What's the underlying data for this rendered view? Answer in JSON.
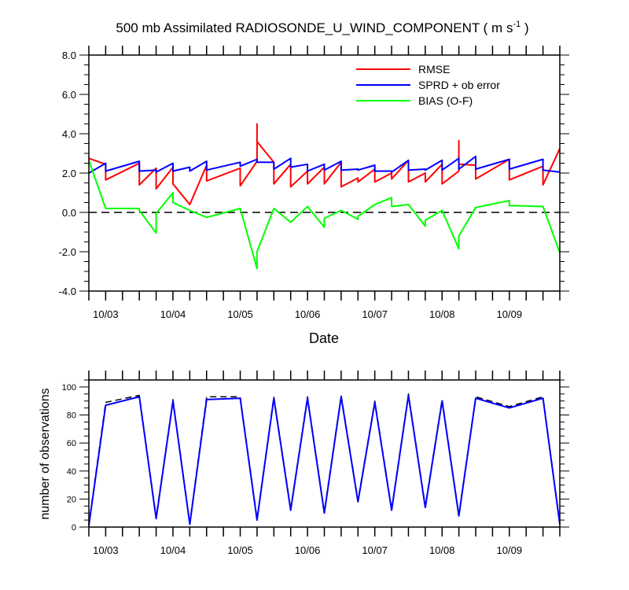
{
  "title": {
    "main": "500 mb Assimilated RADIOSONDE_U_WIND_COMPONENT ( m s",
    "sup": "-1",
    "close": " )"
  },
  "colors": {
    "rmse": "#ff0000",
    "sprd": "#0000ff",
    "bias": "#00ff00",
    "obs_used": "#0000ff",
    "obs_possible": "#000000",
    "zero_line": "#000000"
  },
  "chart_data": [
    {
      "type": "line",
      "xlabel": "Date",
      "ylabel": "",
      "xlim": [
        0,
        28
      ],
      "ylim": [
        -4,
        8
      ],
      "yticks": [
        "8.0",
        "6.0",
        "4.0",
        "2.0",
        "0.0",
        "-2.0",
        "-4.0"
      ],
      "xticks": [
        {
          "x": 1,
          "label": "10/03"
        },
        {
          "x": 5,
          "label": "10/04"
        },
        {
          "x": 9,
          "label": "10/05"
        },
        {
          "x": 13,
          "label": "10/06"
        },
        {
          "x": 17,
          "label": "10/07"
        },
        {
          "x": 21,
          "label": "10/08"
        },
        {
          "x": 25,
          "label": "10/09"
        }
      ],
      "legend_position": "top-right",
      "zero_line": "dashed",
      "series": [
        {
          "key": "rmse",
          "name": "RMSE",
          "points": [
            [
              0,
              2.75
            ],
            [
              1,
              2.45
            ],
            [
              1,
              1.65
            ],
            [
              3,
              2.5
            ],
            [
              3,
              1.4
            ],
            [
              4,
              2.25
            ],
            [
              4,
              1.2
            ],
            [
              5,
              2.3
            ],
            [
              5,
              1.45
            ],
            [
              6,
              0.4
            ],
            [
              7,
              2.4
            ],
            [
              7,
              1.6
            ],
            [
              9,
              2.25
            ],
            [
              9,
              1.35
            ],
            [
              10,
              2.6
            ],
            [
              10,
              4.5
            ],
            [
              10,
              3.6
            ],
            [
              11,
              2.55
            ],
            [
              11,
              1.45
            ],
            [
              12,
              2.45
            ],
            [
              12,
              1.3
            ],
            [
              13,
              2.1
            ],
            [
              13,
              1.45
            ],
            [
              14,
              2.3
            ],
            [
              14,
              1.45
            ],
            [
              15,
              2.55
            ],
            [
              15,
              1.3
            ],
            [
              16,
              1.75
            ],
            [
              16,
              1.55
            ],
            [
              17,
              2.2
            ],
            [
              17,
              1.55
            ],
            [
              18,
              2.0
            ],
            [
              18,
              1.7
            ],
            [
              19,
              2.65
            ],
            [
              19,
              1.55
            ],
            [
              20,
              2.0
            ],
            [
              20,
              1.55
            ],
            [
              21,
              2.45
            ],
            [
              21,
              1.45
            ],
            [
              22,
              2.1
            ],
            [
              22,
              3.65
            ],
            [
              22,
              2.45
            ],
            [
              23,
              2.4
            ],
            [
              23,
              1.7
            ],
            [
              25,
              2.7
            ],
            [
              25,
              1.65
            ],
            [
              27,
              2.35
            ],
            [
              27,
              1.4
            ],
            [
              28,
              3.25
            ]
          ]
        },
        {
          "key": "sprd",
          "name": "SPRD + ob error",
          "points": [
            [
              0,
              2.0
            ],
            [
              1,
              2.5
            ],
            [
              1,
              2.1
            ],
            [
              3,
              2.6
            ],
            [
              3,
              2.1
            ],
            [
              4,
              2.15
            ],
            [
              4,
              2.05
            ],
            [
              5,
              2.5
            ],
            [
              5,
              2.1
            ],
            [
              6,
              2.3
            ],
            [
              6,
              2.1
            ],
            [
              7,
              2.6
            ],
            [
              7,
              2.15
            ],
            [
              9,
              2.55
            ],
            [
              9,
              2.35
            ],
            [
              10,
              2.7
            ],
            [
              10,
              2.55
            ],
            [
              11,
              2.55
            ],
            [
              11,
              2.2
            ],
            [
              12,
              2.75
            ],
            [
              12,
              2.3
            ],
            [
              13,
              2.45
            ],
            [
              13,
              2.1
            ],
            [
              14,
              2.45
            ],
            [
              14,
              2.15
            ],
            [
              15,
              2.6
            ],
            [
              15,
              2.15
            ],
            [
              16,
              2.2
            ],
            [
              16,
              2.15
            ],
            [
              17,
              2.4
            ],
            [
              17,
              2.1
            ],
            [
              18,
              2.1
            ],
            [
              18,
              2.05
            ],
            [
              19,
              2.65
            ],
            [
              19,
              2.15
            ],
            [
              20,
              2.2
            ],
            [
              20,
              2.15
            ],
            [
              21,
              2.65
            ],
            [
              21,
              2.15
            ],
            [
              22,
              2.75
            ],
            [
              22,
              2.2
            ],
            [
              23,
              2.85
            ],
            [
              23,
              2.2
            ],
            [
              25,
              2.7
            ],
            [
              25,
              2.2
            ],
            [
              27,
              2.7
            ],
            [
              27,
              2.15
            ],
            [
              28,
              2.05
            ]
          ]
        },
        {
          "key": "bias",
          "name": "BIAS (O-F)",
          "points": [
            [
              0,
              2.65
            ],
            [
              1,
              0.2
            ],
            [
              3,
              0.2
            ],
            [
              3,
              0.1
            ],
            [
              4,
              -1.05
            ],
            [
              4,
              -0.05
            ],
            [
              5,
              1.0
            ],
            [
              5,
              0.5
            ],
            [
              6,
              0.1
            ],
            [
              7,
              -0.25
            ],
            [
              9,
              0.2
            ],
            [
              10,
              -2.85
            ],
            [
              10,
              -2.0
            ],
            [
              11,
              0.2
            ],
            [
              12,
              -0.5
            ],
            [
              13,
              0.3
            ],
            [
              14,
              -0.75
            ],
            [
              14,
              -0.3
            ],
            [
              15,
              0.1
            ],
            [
              16,
              -0.35
            ],
            [
              16,
              -0.2
            ],
            [
              17,
              0.4
            ],
            [
              18,
              0.75
            ],
            [
              18,
              0.3
            ],
            [
              19,
              0.4
            ],
            [
              20,
              -0.7
            ],
            [
              20,
              -0.4
            ],
            [
              21,
              0.1
            ],
            [
              22,
              -1.85
            ],
            [
              22,
              -1.2
            ],
            [
              23,
              0.25
            ],
            [
              25,
              0.6
            ],
            [
              25,
              0.35
            ],
            [
              27,
              0.3
            ],
            [
              28,
              -2.05
            ]
          ]
        }
      ]
    },
    {
      "type": "line",
      "xlabel": "",
      "ylabel": "number of observations",
      "xlim": [
        0,
        28
      ],
      "ylim": [
        0,
        105
      ],
      "yticks": [
        "100",
        "80",
        "60",
        "40",
        "20",
        "0"
      ],
      "xticks": [
        {
          "x": 1,
          "label": "10/03"
        },
        {
          "x": 5,
          "label": "10/04"
        },
        {
          "x": 9,
          "label": "10/05"
        },
        {
          "x": 13,
          "label": "10/06"
        },
        {
          "x": 17,
          "label": "10/07"
        },
        {
          "x": 21,
          "label": "10/08"
        },
        {
          "x": 25,
          "label": "10/09"
        }
      ],
      "series": [
        {
          "key": "obs_possible",
          "dashed": true,
          "points": [
            [
              0,
              2
            ],
            [
              1,
              89
            ],
            [
              3,
              94
            ],
            [
              4,
              7
            ],
            [
              5,
              91
            ],
            [
              6,
              3
            ],
            [
              7,
              93
            ],
            [
              9,
              93
            ],
            [
              10,
              6
            ],
            [
              11,
              93
            ],
            [
              12,
              13
            ],
            [
              13,
              93
            ],
            [
              14,
              11
            ],
            [
              15,
              94
            ],
            [
              16,
              19
            ],
            [
              17,
              90
            ],
            [
              18,
              13
            ],
            [
              19,
              95
            ],
            [
              20,
              15
            ],
            [
              21,
              91
            ],
            [
              22,
              9
            ],
            [
              23,
              93
            ],
            [
              25,
              86
            ],
            [
              27,
              93
            ],
            [
              28,
              3
            ]
          ]
        },
        {
          "key": "obs_used",
          "dashed": false,
          "points": [
            [
              0,
              1
            ],
            [
              1,
              87
            ],
            [
              3,
              93
            ],
            [
              4,
              6
            ],
            [
              5,
              90
            ],
            [
              6,
              2
            ],
            [
              7,
              91
            ],
            [
              9,
              92
            ],
            [
              10,
              5
            ],
            [
              11,
              92
            ],
            [
              12,
              12
            ],
            [
              13,
              92
            ],
            [
              14,
              10
            ],
            [
              15,
              93
            ],
            [
              16,
              18
            ],
            [
              17,
              89
            ],
            [
              18,
              12
            ],
            [
              19,
              94
            ],
            [
              20,
              14
            ],
            [
              21,
              90
            ],
            [
              22,
              8
            ],
            [
              23,
              92
            ],
            [
              25,
              85
            ],
            [
              27,
              92
            ],
            [
              28,
              2
            ]
          ]
        }
      ]
    }
  ]
}
